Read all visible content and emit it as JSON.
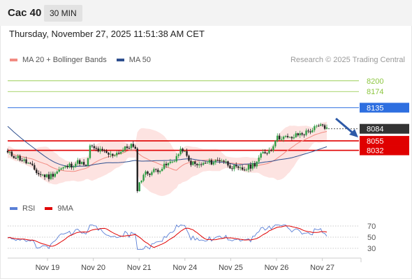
{
  "header": {
    "instrument": "Cac 40",
    "timeframe": "30 MIN",
    "datetime": "Thursday, November 27, 2025 11:51:38 AM CET"
  },
  "legend": {
    "ma20_label": "MA 20 + Bollinger Bands",
    "ma50_label": "MA 50",
    "ma20_color": "#f28b82",
    "ma50_color": "#2e4f8f",
    "credit": "Research © 2025 Trading Central"
  },
  "rsi_legend": {
    "rsi_label": "RSI",
    "ma_label": "9MA",
    "rsi_color": "#5a7fd6",
    "ma_color": "#e00000"
  },
  "chart_data": {
    "type": "candlestick",
    "x_axis": {
      "labels": [
        "Nov 19",
        "Nov 20",
        "Nov 21",
        "Nov 24",
        "Nov 25",
        "Nov 26",
        "Nov 27"
      ]
    },
    "y_axis": {
      "range": [
        7915,
        8230
      ]
    },
    "levels": [
      {
        "value": 8200,
        "label": "8200",
        "kind": "resistance",
        "color": "#8cc63f"
      },
      {
        "value": 8174,
        "label": "8174",
        "kind": "resistance",
        "color": "#8cc63f"
      },
      {
        "value": 8135,
        "label": "8135",
        "kind": "pivot",
        "color": "#2e6fe0"
      },
      {
        "value": 8084,
        "label": "8084",
        "kind": "last-price",
        "color": "#333333"
      },
      {
        "value": 8055,
        "label": "8055",
        "kind": "support",
        "color": "#e00000"
      },
      {
        "value": 8032,
        "label": "8032",
        "kind": "support",
        "color": "#e00000"
      }
    ],
    "annotation": {
      "type": "arrow",
      "direction": "down",
      "color": "#2e5aa8"
    },
    "rsi": {
      "levels": [
        70,
        50,
        30
      ],
      "range": [
        20,
        80
      ]
    }
  }
}
